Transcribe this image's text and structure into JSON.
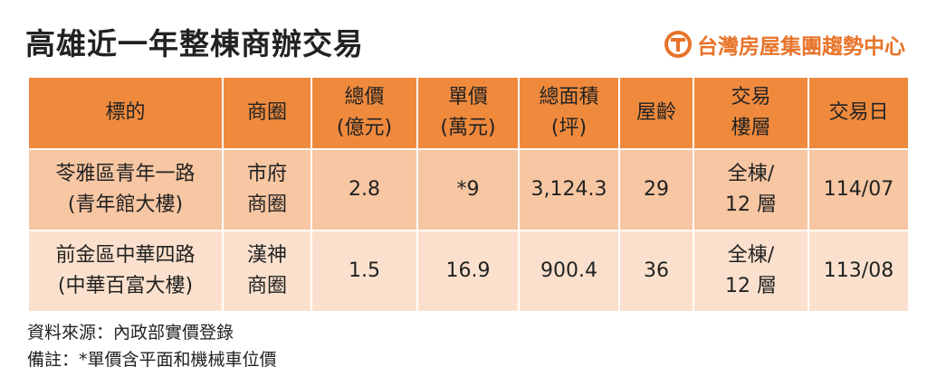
{
  "header": {
    "title": "高雄近一年整棟商辦交易",
    "brand": "台灣房屋集團趨勢中心"
  },
  "table": {
    "columns": [
      [
        "標的"
      ],
      [
        "商圈"
      ],
      [
        "總價",
        "(億元)"
      ],
      [
        "單價",
        "(萬元)"
      ],
      [
        "總面積",
        "(坪)"
      ],
      [
        "屋齡"
      ],
      [
        "交易",
        "樓層"
      ],
      [
        "交易日"
      ]
    ],
    "rows": [
      [
        [
          "苓雅區青年一路",
          "(青年館大樓)"
        ],
        [
          "市府",
          "商圈"
        ],
        [
          "2.8"
        ],
        [
          "*9"
        ],
        [
          "3,124.3"
        ],
        [
          "29"
        ],
        [
          "全棟/",
          "12 層"
        ],
        [
          "114/07"
        ]
      ],
      [
        [
          "前金區中華四路",
          "(中華百富大樓)"
        ],
        [
          "漢神",
          "商圈"
        ],
        [
          "1.5"
        ],
        [
          "16.9"
        ],
        [
          "900.4"
        ],
        [
          "36"
        ],
        [
          "全棟/",
          "12 層"
        ],
        [
          "113/08"
        ]
      ]
    ]
  },
  "notes": [
    "資料來源：內政部實價登錄",
    "備註：*單價含平面和機械車位價"
  ]
}
